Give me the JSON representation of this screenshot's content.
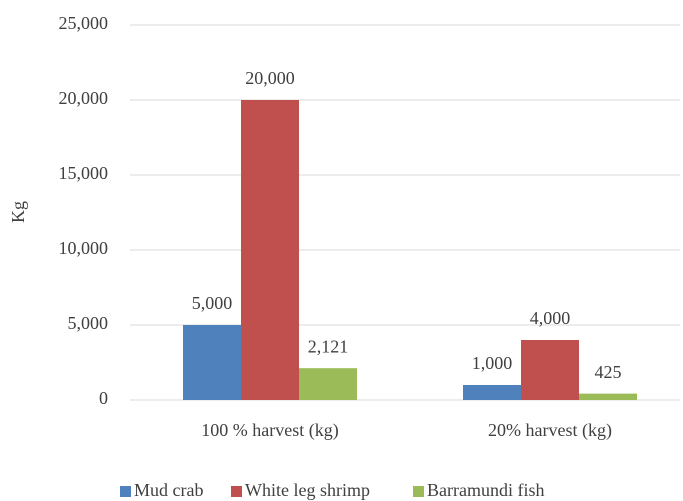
{
  "chart_data": {
    "type": "bar",
    "y_label": "Kg",
    "categories": [
      "100 % harvest (kg)",
      "20% harvest (kg)"
    ],
    "series": [
      {
        "name": "Mud crab",
        "color": "#4f81bd",
        "values": [
          5000,
          1000
        ],
        "value_labels": [
          "5,000",
          "1,000"
        ]
      },
      {
        "name": "White leg shrimp",
        "color": "#c0504d",
        "values": [
          20000,
          4000
        ],
        "value_labels": [
          "20,000",
          "4,000"
        ]
      },
      {
        "name": "Barramundi fish",
        "color": "#9bbb59",
        "values": [
          2121,
          425
        ],
        "value_labels": [
          "2,121",
          "425"
        ]
      }
    ],
    "ylim": [
      0,
      25000
    ],
    "yticks": [
      0,
      {
        "value": 5000,
        "label": "5,000"
      },
      {
        "value": 10000,
        "label": "10,000"
      },
      {
        "value": 15000,
        "label": "15,000"
      },
      {
        "value": 20000,
        "label": "20,000"
      },
      {
        "value": 25000,
        "label": "25,000"
      }
    ],
    "grid": true,
    "legend": "bottom"
  }
}
